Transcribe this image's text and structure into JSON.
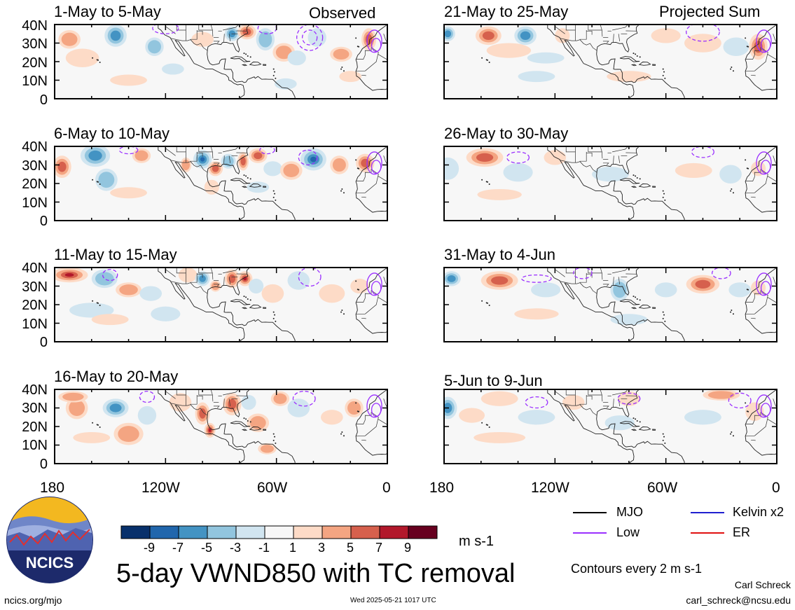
{
  "chart_data": {
    "type": "heatmap",
    "title": "5-day VWND850 with TC removal",
    "variable": "VWND850",
    "units": "m s-1",
    "contour_note": "Contours every 2 m s-1",
    "lon_ticks": [
      "180",
      "120W",
      "60W",
      "0"
    ],
    "lat_ticks": [
      "40N",
      "30N",
      "20N",
      "10N",
      "0"
    ],
    "lon_range": [
      -180,
      0
    ],
    "lat_range": [
      0,
      40
    ],
    "colorbar": {
      "labels": [
        "-9",
        "-7",
        "-5",
        "-3",
        "-1",
        "1",
        "3",
        "5",
        "7",
        "9"
      ],
      "colors": [
        "#08306b",
        "#2166ac",
        "#4393c3",
        "#92c5de",
        "#d1e5f0",
        "#f7f7f7",
        "#fddbc7",
        "#f4a582",
        "#d6604d",
        "#b2182b",
        "#67001f"
      ]
    },
    "legend": [
      {
        "label": "MJO",
        "color": "#000000"
      },
      {
        "label": "Kelvin x2",
        "color": "#1f1fd0"
      },
      {
        "label": "Low",
        "color": "#9b30ff"
      },
      {
        "label": "ER",
        "color": "#e01010"
      }
    ],
    "columns": [
      {
        "header": "Observed",
        "panels": [
          {
            "label": "1-May to 5-May"
          },
          {
            "label": "6-May to 10-May"
          },
          {
            "label": "11-May to 15-May"
          },
          {
            "label": "16-May to 20-May"
          }
        ]
      },
      {
        "header": "Projected Sum",
        "panels": [
          {
            "label": "21-May to 25-May"
          },
          {
            "label": "26-May to 30-May"
          },
          {
            "label": "31-May to 4-Jun"
          },
          {
            "label": "5-Jun to 9-Jun"
          }
        ]
      }
    ]
  },
  "logo": {
    "text": "NCICS"
  },
  "footer": {
    "url": "ncics.org/mjo",
    "timestamp": "Wed 2025-05-21 1017 UTC",
    "author": "Carl Schreck",
    "email": "carl_schreck@ncsu.edu"
  }
}
